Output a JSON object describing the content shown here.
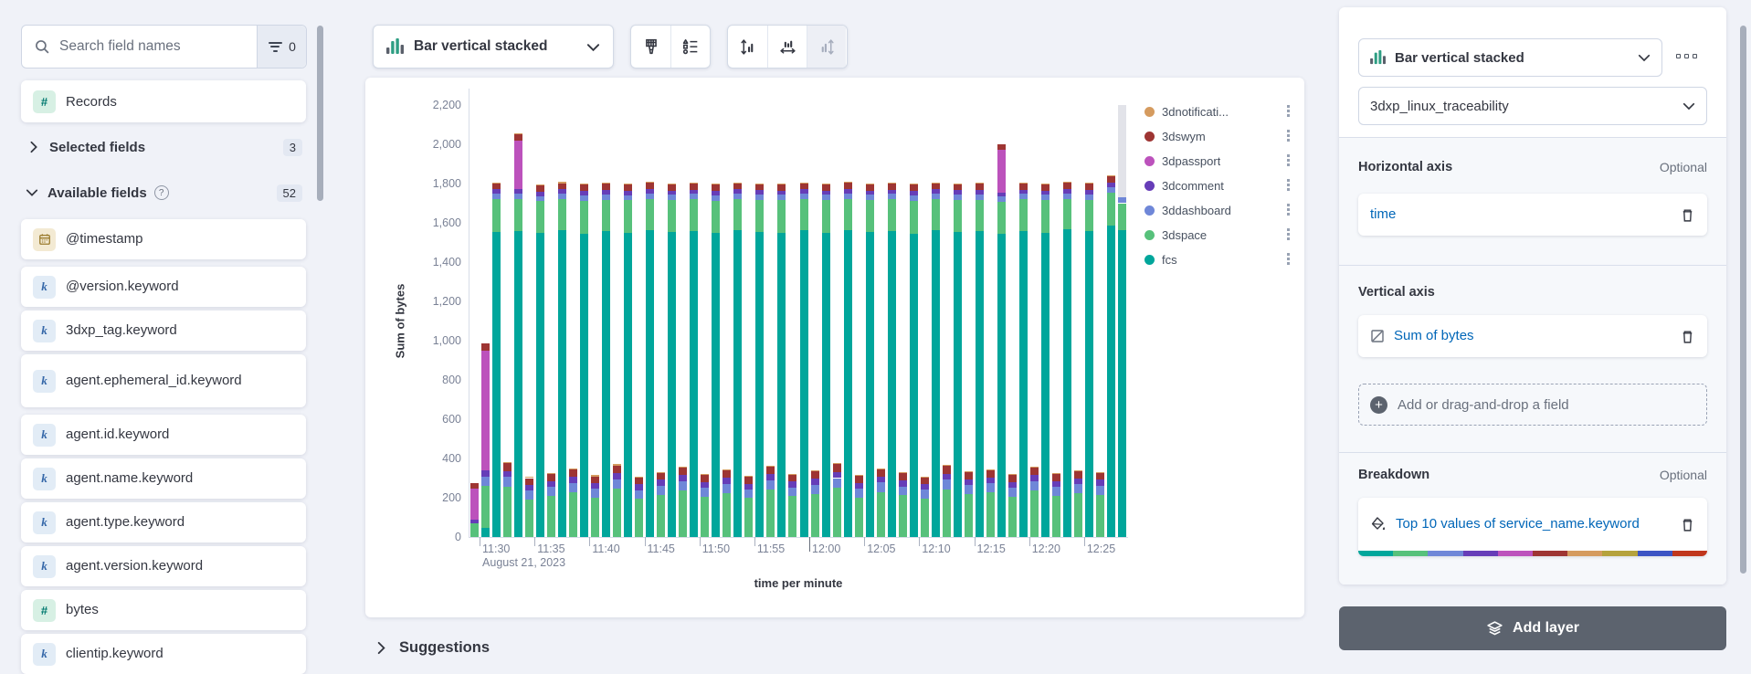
{
  "sidebar": {
    "search": {
      "placeholder": "Search field names",
      "filter_count": "0"
    },
    "records_label": "Records",
    "sections": {
      "selected": {
        "label": "Selected fields",
        "count": "3"
      },
      "available": {
        "label": "Available fields",
        "count": "52",
        "help_icon": "?"
      }
    },
    "type_glyphs": {
      "keyword": "k",
      "number": "#"
    },
    "fields": [
      {
        "name": "@timestamp",
        "type": "date"
      },
      {
        "name": "@version.keyword",
        "type": "keyword"
      },
      {
        "name": "3dxp_tag.keyword",
        "type": "keyword"
      },
      {
        "name": "agent.ephemeral_id.keyword",
        "type": "keyword"
      },
      {
        "name": "agent.id.keyword",
        "type": "keyword"
      },
      {
        "name": "agent.name.keyword",
        "type": "keyword"
      },
      {
        "name": "agent.type.keyword",
        "type": "keyword"
      },
      {
        "name": "agent.version.keyword",
        "type": "keyword"
      },
      {
        "name": "bytes",
        "type": "number"
      },
      {
        "name": "clientip.keyword",
        "type": "keyword"
      }
    ]
  },
  "toolbar": {
    "chart_type_label": "Bar vertical stacked"
  },
  "suggestions": {
    "label": "Suggestions"
  },
  "config_panel": {
    "chart_type_label": "Bar vertical stacked",
    "data_view": "3dxp_linux_traceability",
    "sections": [
      {
        "title": "Horizontal axis",
        "optional": "Optional",
        "field_label": "time"
      },
      {
        "title": "Vertical axis",
        "optional": "",
        "field_label": "Sum of bytes",
        "add_placeholder": "Add or drag-and-drop a field"
      },
      {
        "title": "Breakdown",
        "optional": "Optional",
        "field_label": "Top 10 values of service_name.keyword"
      }
    ],
    "breakdown_palette": [
      "#00a69b",
      "#57c17b",
      "#6f87d8",
      "#663db8",
      "#bc52bc",
      "#9e3533",
      "#d59b5f",
      "#b5a23c",
      "#3b53c4",
      "#c0361c"
    ],
    "add_layer_label": "Add layer"
  },
  "chart_data": {
    "type": "bar",
    "stacked": true,
    "xlabel": "time per minute",
    "ylabel": "Sum of bytes",
    "ylim": [
      0,
      2200
    ],
    "yticks": [
      0,
      200,
      400,
      600,
      800,
      1000,
      1200,
      1400,
      1600,
      1800,
      2000,
      2200
    ],
    "grid": false,
    "legend_position": "right",
    "x_axis_date_sublabel": "August 21, 2023",
    "x_ticks": [
      {
        "index": 1,
        "label": "11:30"
      },
      {
        "index": 6,
        "label": "11:35"
      },
      {
        "index": 11,
        "label": "11:40"
      },
      {
        "index": 16,
        "label": "11:45"
      },
      {
        "index": 21,
        "label": "11:50"
      },
      {
        "index": 26,
        "label": "11:55"
      },
      {
        "index": 31,
        "label": "12:00"
      },
      {
        "index": 36,
        "label": "12:05"
      },
      {
        "index": 41,
        "label": "12:10"
      },
      {
        "index": 46,
        "label": "12:15"
      },
      {
        "index": 51,
        "label": "12:20"
      },
      {
        "index": 56,
        "label": "12:25"
      }
    ],
    "series_bottom_to_top": [
      {
        "name": "fcs",
        "color": "#00a69b"
      },
      {
        "name": "3dspace",
        "color": "#57c17b"
      },
      {
        "name": "3ddashboard",
        "color": "#6f87d8"
      },
      {
        "name": "3dcomment",
        "color": "#663db8"
      },
      {
        "name": "3dpassport",
        "color": "#bc52bc"
      },
      {
        "name": "3dswym",
        "color": "#9e3533"
      },
      {
        "name": "3dnotification",
        "color": "#d59b5f"
      }
    ],
    "legend": [
      {
        "label": "3dnotificati...",
        "color": "#d59b5f"
      },
      {
        "label": "3dswym",
        "color": "#9e3533"
      },
      {
        "label": "3dpassport",
        "color": "#bc52bc"
      },
      {
        "label": "3dcomment",
        "color": "#663db8"
      },
      {
        "label": "3ddashboard",
        "color": "#6f87d8"
      },
      {
        "label": "3dspace",
        "color": "#57c17b"
      },
      {
        "label": "fcs",
        "color": "#00a69b"
      }
    ],
    "bars": [
      {
        "t": "11:29",
        "v": [
          0,
          70,
          0,
          18,
          160,
          25,
          0
        ]
      },
      {
        "t": "11:30",
        "v": [
          45,
          215,
          47,
          33,
          610,
          36,
          0
        ]
      },
      {
        "t": "11:31",
        "v": [
          1555,
          165,
          28,
          22,
          0,
          30,
          6
        ]
      },
      {
        "t": "11:32",
        "v": [
          0,
          255,
          50,
          32,
          0,
          40,
          6
        ]
      },
      {
        "t": "11:33",
        "v": [
          1560,
          160,
          28,
          22,
          250,
          30,
          5
        ]
      },
      {
        "t": "11:34",
        "v": [
          0,
          190,
          45,
          30,
          0,
          35,
          5
        ]
      },
      {
        "t": "11:35",
        "v": [
          1548,
          162,
          27,
          22,
          0,
          31,
          5
        ]
      },
      {
        "t": "11:36",
        "v": [
          0,
          210,
          46,
          30,
          0,
          36,
          5
        ]
      },
      {
        "t": "11:37",
        "v": [
          1562,
          158,
          28,
          23,
          0,
          30,
          6
        ]
      },
      {
        "t": "11:38",
        "v": [
          0,
          228,
          48,
          31,
          0,
          37,
          5
        ]
      },
      {
        "t": "11:39",
        "v": [
          1545,
          168,
          27,
          22,
          0,
          32,
          5
        ]
      },
      {
        "t": "11:40",
        "v": [
          0,
          200,
          45,
          29,
          0,
          35,
          5
        ]
      },
      {
        "t": "11:41",
        "v": [
          1558,
          160,
          28,
          22,
          0,
          30,
          6
        ]
      },
      {
        "t": "11:42",
        "v": [
          0,
          245,
          49,
          32,
          0,
          39,
          6
        ]
      },
      {
        "t": "11:43",
        "v": [
          1550,
          164,
          27,
          22,
          0,
          31,
          5
        ]
      },
      {
        "t": "11:44",
        "v": [
          0,
          195,
          44,
          29,
          0,
          34,
          5
        ]
      },
      {
        "t": "11:45",
        "v": [
          1565,
          158,
          28,
          23,
          0,
          30,
          5
        ]
      },
      {
        "t": "11:46",
        "v": [
          0,
          215,
          46,
          30,
          0,
          36,
          5
        ]
      },
      {
        "t": "11:47",
        "v": [
          1552,
          163,
          27,
          22,
          0,
          31,
          6
        ]
      },
      {
        "t": "11:48",
        "v": [
          0,
          235,
          48,
          31,
          0,
          38,
          5
        ]
      },
      {
        "t": "11:49",
        "v": [
          1560,
          159,
          28,
          22,
          0,
          30,
          5
        ]
      },
      {
        "t": "11:50",
        "v": [
          0,
          205,
          45,
          30,
          0,
          35,
          5
        ]
      },
      {
        "t": "11:51",
        "v": [
          1547,
          166,
          27,
          22,
          0,
          32,
          5
        ]
      },
      {
        "t": "11:52",
        "v": [
          0,
          225,
          47,
          31,
          0,
          37,
          6
        ]
      },
      {
        "t": "11:53",
        "v": [
          1563,
          157,
          28,
          23,
          0,
          30,
          5
        ]
      },
      {
        "t": "11:54",
        "v": [
          0,
          198,
          44,
          29,
          0,
          34,
          5
        ]
      },
      {
        "t": "11:55",
        "v": [
          1555,
          162,
          27,
          22,
          0,
          31,
          5
        ]
      },
      {
        "t": "11:56",
        "v": [
          0,
          240,
          49,
          32,
          0,
          38,
          6
        ]
      },
      {
        "t": "11:57",
        "v": [
          1549,
          165,
          28,
          22,
          0,
          31,
          5
        ]
      },
      {
        "t": "11:58",
        "v": [
          0,
          208,
          45,
          30,
          0,
          35,
          5
        ]
      },
      {
        "t": "11:59",
        "v": [
          1561,
          159,
          28,
          22,
          0,
          30,
          6
        ]
      },
      {
        "t": "12:00",
        "v": [
          0,
          220,
          47,
          30,
          0,
          36,
          5
        ]
      },
      {
        "t": "12:01",
        "v": [
          1551,
          164,
          27,
          22,
          0,
          31,
          5
        ]
      },
      {
        "t": "12:02",
        "v": [
          0,
          250,
          50,
          32,
          0,
          40,
          6
        ]
      },
      {
        "t": "12:03",
        "v": [
          1564,
          158,
          28,
          23,
          0,
          30,
          5
        ]
      },
      {
        "t": "12:04",
        "v": [
          0,
          202,
          45,
          29,
          0,
          35,
          5
        ]
      },
      {
        "t": "12:05",
        "v": [
          1553,
          162,
          27,
          22,
          0,
          31,
          5
        ]
      },
      {
        "t": "12:06",
        "v": [
          0,
          230,
          48,
          31,
          0,
          37,
          5
        ]
      },
      {
        "t": "12:07",
        "v": [
          1559,
          160,
          28,
          22,
          0,
          30,
          6
        ]
      },
      {
        "t": "12:08",
        "v": [
          0,
          212,
          46,
          30,
          0,
          36,
          5
        ]
      },
      {
        "t": "12:09",
        "v": [
          1546,
          167,
          27,
          22,
          0,
          32,
          5
        ]
      },
      {
        "t": "12:10",
        "v": [
          0,
          196,
          44,
          29,
          0,
          34,
          5
        ]
      },
      {
        "t": "12:11",
        "v": [
          1562,
          158,
          28,
          23,
          0,
          30,
          5
        ]
      },
      {
        "t": "12:12",
        "v": [
          0,
          242,
          49,
          32,
          0,
          39,
          6
        ]
      },
      {
        "t": "12:13",
        "v": [
          1554,
          163,
          27,
          22,
          0,
          31,
          5
        ]
      },
      {
        "t": "12:14",
        "v": [
          0,
          218,
          46,
          30,
          0,
          36,
          5
        ]
      },
      {
        "t": "12:15",
        "v": [
          1557,
          161,
          28,
          22,
          0,
          30,
          5
        ]
      },
      {
        "t": "12:16",
        "v": [
          0,
          226,
          47,
          31,
          0,
          37,
          5
        ]
      },
      {
        "t": "12:17",
        "v": [
          1545,
          160,
          28,
          22,
          215,
          30,
          0
        ]
      },
      {
        "t": "12:18",
        "v": [
          0,
          204,
          45,
          30,
          0,
          35,
          5
        ]
      },
      {
        "t": "12:19",
        "v": [
          1560,
          159,
          28,
          22,
          0,
          31,
          6
        ]
      },
      {
        "t": "12:20",
        "v": [
          0,
          236,
          48,
          31,
          0,
          38,
          5
        ]
      },
      {
        "t": "12:21",
        "v": [
          1550,
          165,
          27,
          22,
          0,
          31,
          5
        ]
      },
      {
        "t": "12:22",
        "v": [
          0,
          210,
          46,
          30,
          0,
          35,
          5
        ]
      },
      {
        "t": "12:23",
        "v": [
          1566,
          157,
          28,
          23,
          0,
          30,
          5
        ]
      },
      {
        "t": "12:24",
        "v": [
          0,
          222,
          47,
          30,
          0,
          36,
          5
        ]
      },
      {
        "t": "12:25",
        "v": [
          1556,
          162,
          27,
          22,
          0,
          31,
          6
        ]
      },
      {
        "t": "12:26",
        "v": [
          0,
          215,
          46,
          30,
          0,
          36,
          5
        ]
      },
      {
        "t": "12:27",
        "v": [
          1585,
          170,
          28,
          22,
          0,
          32,
          6
        ]
      },
      {
        "t": "12:28",
        "v": [
          1565,
          135,
          30,
          0,
          0,
          0,
          0
        ]
      }
    ],
    "partial_bucket_marker": {
      "time": "12:28",
      "from": 1730,
      "to": 2200,
      "color": "#e2e3e9"
    }
  }
}
